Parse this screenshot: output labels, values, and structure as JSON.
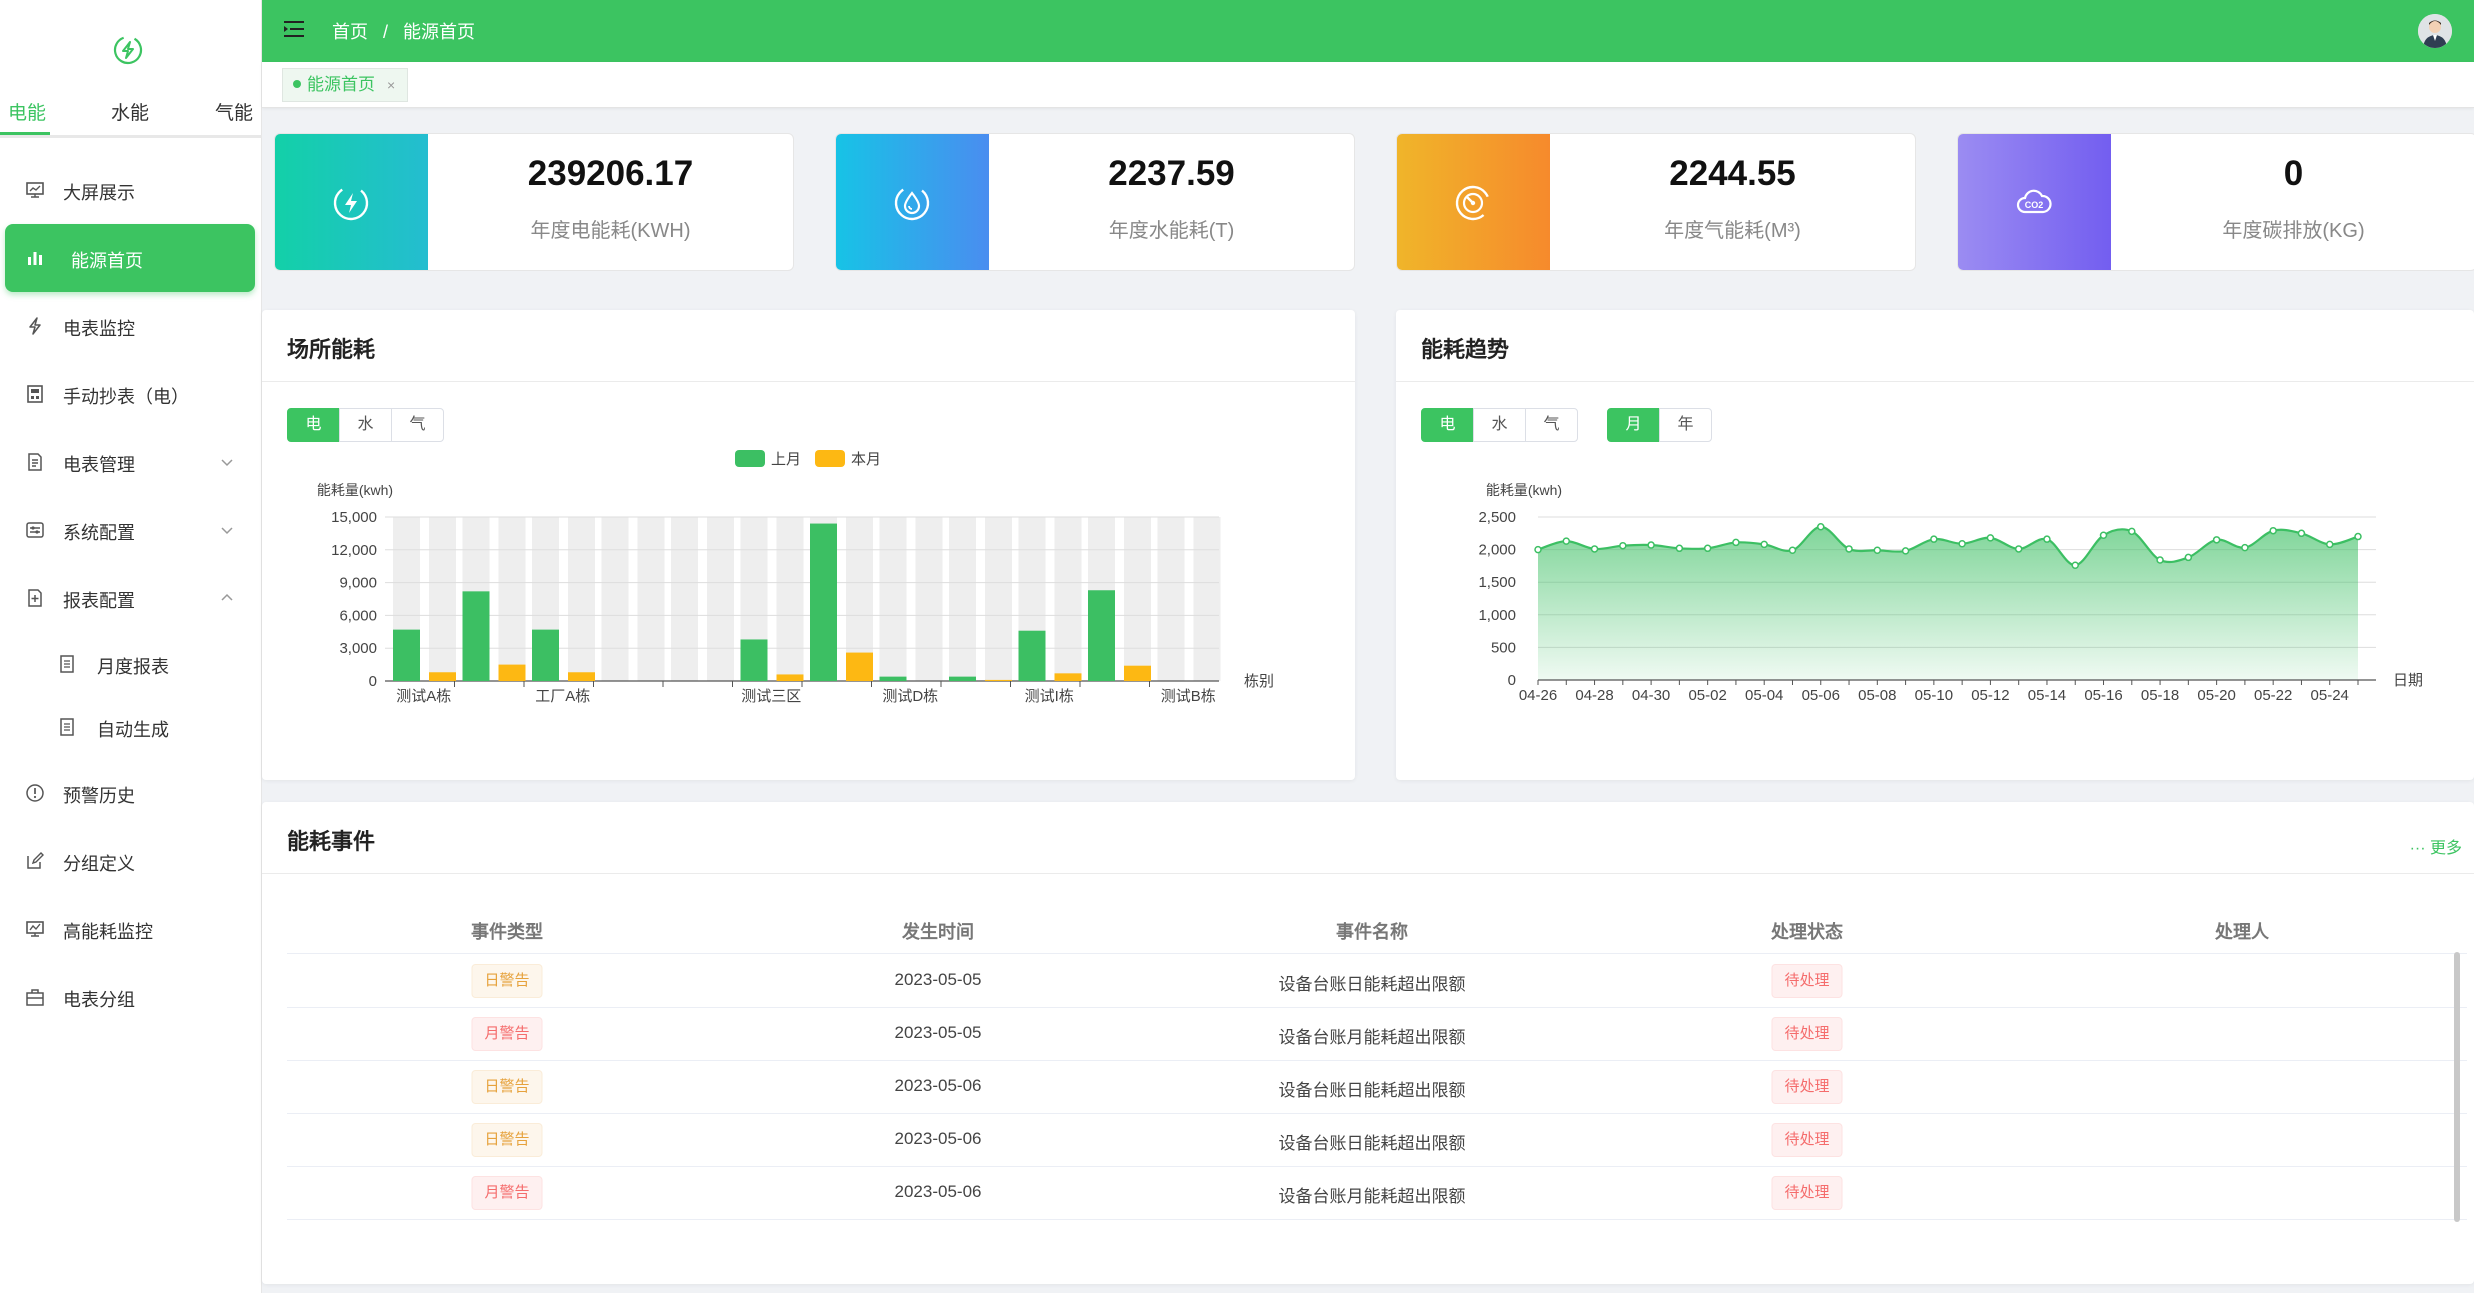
{
  "sidebar": {
    "logo_icon": "power-logo-icon",
    "energy_tabs": [
      {
        "label": "电能",
        "active": true
      },
      {
        "label": "水能",
        "active": false
      },
      {
        "label": "气能",
        "active": false
      }
    ],
    "menu": [
      {
        "label": "大屏展示",
        "icon": "monitor-icon"
      },
      {
        "label": "能源首页",
        "icon": "bar-chart-icon",
        "active": true
      },
      {
        "label": "电表监控",
        "icon": "lightning-icon"
      },
      {
        "label": "手动抄表（电）",
        "icon": "meter-icon"
      },
      {
        "label": "电表管理",
        "icon": "document-icon",
        "expand": "collapsed"
      },
      {
        "label": "系统配置",
        "icon": "config-icon",
        "expand": "collapsed"
      },
      {
        "label": "报表配置",
        "icon": "report-icon",
        "expand": "expanded"
      },
      {
        "label": "月度报表",
        "icon": "file-icon",
        "sub": true
      },
      {
        "label": "自动生成",
        "icon": "file-icon",
        "sub": true
      },
      {
        "label": "预警历史",
        "icon": "alert-icon"
      },
      {
        "label": "分组定义",
        "icon": "edit-icon"
      },
      {
        "label": "高能耗监控",
        "icon": "monitor-chart-icon"
      },
      {
        "label": "电表分组",
        "icon": "group-icon"
      }
    ]
  },
  "topbar": {
    "breadcrumb": [
      "首页",
      "/",
      "能源首页"
    ],
    "color": "#3cc461"
  },
  "tagsbar": {
    "tag_label": "能源首页",
    "tag_close": "×"
  },
  "stats": [
    {
      "value": "239206.17",
      "label": "年度电能耗(KWH)",
      "icon": "lightning-icon",
      "gradient": [
        "#13d0a8",
        "#24bdd0"
      ]
    },
    {
      "value": "2237.59",
      "label": "年度水能耗(T)",
      "icon": "water-drop-icon",
      "gradient": [
        "#17c3e6",
        "#4a8df0"
      ]
    },
    {
      "value": "2244.55",
      "label": "年度气能耗(M³)",
      "icon": "gauge-icon",
      "gradient": [
        "#f0b52a",
        "#f68a2c"
      ]
    },
    {
      "value": "0",
      "label": "年度碳排放(KG)",
      "icon": "co2-cloud-icon",
      "gradient": [
        "#9b8cf2",
        "#735ef0"
      ]
    }
  ],
  "site_panel": {
    "title": "场所能耗",
    "buttons": [
      "电",
      "水",
      "气"
    ],
    "active_button": 0
  },
  "trend_panel": {
    "title": "能耗趋势",
    "type_buttons": [
      "电",
      "水",
      "气"
    ],
    "active_type": 0,
    "period_buttons": [
      "月",
      "年"
    ],
    "active_period": 0
  },
  "events_panel": {
    "title": "能耗事件",
    "more": "··· 更多",
    "columns": [
      "事件类型",
      "发生时间",
      "事件名称",
      "处理状态",
      "处理人"
    ],
    "rows": [
      {
        "type": "日警告",
        "kind": "day",
        "time": "2023-05-05",
        "name": "设备台账日能耗超出限额",
        "status": "待处理",
        "handler": ""
      },
      {
        "type": "月警告",
        "kind": "month",
        "time": "2023-05-05",
        "name": "设备台账月能耗超出限额",
        "status": "待处理",
        "handler": ""
      },
      {
        "type": "日警告",
        "kind": "day",
        "time": "2023-05-06",
        "name": "设备台账日能耗超出限额",
        "status": "待处理",
        "handler": ""
      },
      {
        "type": "日警告",
        "kind": "day",
        "time": "2023-05-06",
        "name": "设备台账日能耗超出限额",
        "status": "待处理",
        "handler": ""
      },
      {
        "type": "月警告",
        "kind": "month",
        "time": "2023-05-06",
        "name": "设备台账月能耗超出限额",
        "status": "待处理",
        "handler": ""
      }
    ]
  },
  "chart_data": [
    {
      "type": "bar",
      "title": "",
      "ylabel": "能耗量(kwh)",
      "xlabel": "栋别",
      "ylim": [
        0,
        15000
      ],
      "yticks": [
        0,
        3000,
        6000,
        9000,
        12000,
        15000
      ],
      "categories": [
        "测试A栋",
        "",
        "工厂A栋",
        "",
        "",
        "测试三区",
        "",
        "测试D栋",
        "",
        "测试I栋",
        "",
        "测试B栋"
      ],
      "series": [
        {
          "name": "上月",
          "color": "#3cbf63",
          "values": [
            4700,
            8200,
            4700,
            0,
            0,
            3800,
            14400,
            400,
            400,
            4600,
            8300,
            0
          ]
        },
        {
          "name": "本月",
          "color": "#fdb813",
          "values": [
            800,
            1500,
            800,
            0,
            0,
            600,
            2600,
            0,
            100,
            700,
            1400,
            0
          ]
        }
      ],
      "legend": "top-center",
      "background_bars": true,
      "grid": true
    },
    {
      "type": "area",
      "title": "",
      "ylabel": "能耗量(kwh)",
      "xlabel": "日期",
      "ylim": [
        0,
        2500
      ],
      "yticks": [
        0,
        500,
        1000,
        1500,
        2000,
        2500
      ],
      "x": [
        "04-26",
        "04-27",
        "04-28",
        "04-29",
        "04-30",
        "05-01",
        "05-02",
        "05-03",
        "05-04",
        "05-05",
        "05-06",
        "05-07",
        "05-08",
        "05-09",
        "05-10",
        "05-11",
        "05-12",
        "05-13",
        "05-14",
        "05-15",
        "05-16",
        "05-17",
        "05-18",
        "05-19",
        "05-20",
        "05-21",
        "05-22",
        "05-23",
        "05-24",
        "05-25"
      ],
      "x_tick_labels": [
        "04-26",
        "04-28",
        "04-30",
        "05-02",
        "05-04",
        "05-06",
        "05-08",
        "05-10",
        "05-12",
        "05-14",
        "05-16",
        "05-18",
        "05-20",
        "05-22",
        "05-24"
      ],
      "series": [
        {
          "name": "",
          "color": "#3cbf63",
          "values": [
            2000,
            2130,
            2010,
            2060,
            2070,
            2020,
            2020,
            2110,
            2080,
            1990,
            2350,
            2010,
            1990,
            1980,
            2160,
            2090,
            2180,
            2010,
            2160,
            1760,
            2220,
            2280,
            1840,
            1880,
            2150,
            2030,
            2290,
            2250,
            2080,
            2200
          ]
        }
      ],
      "grid": true
    }
  ]
}
